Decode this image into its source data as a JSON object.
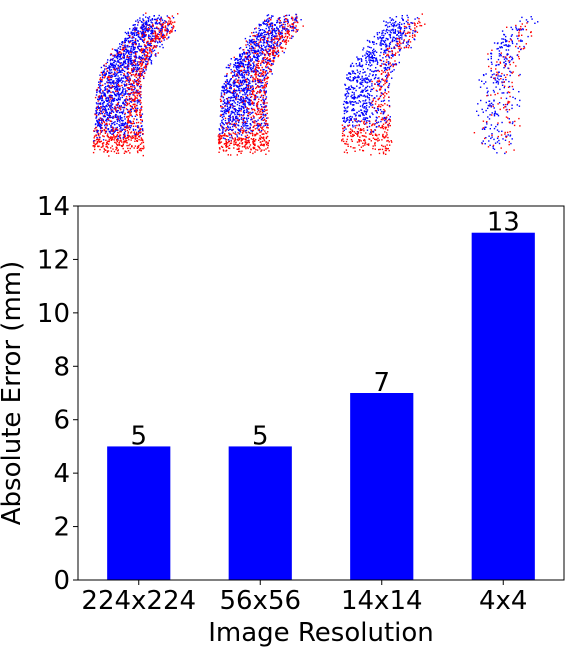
{
  "chart_data": {
    "type": "bar",
    "categories": [
      "224x224",
      "56x56",
      "14x14",
      "4x4"
    ],
    "values": [
      5,
      5,
      7,
      13
    ],
    "data_labels": [
      "5",
      "5",
      "7",
      "13"
    ],
    "xlabel": "Image Resolution",
    "ylabel": "Absolute Error (mm)",
    "ylim": [
      0,
      14
    ],
    "yticks": [
      0,
      2,
      4,
      6,
      8,
      10,
      12,
      14
    ],
    "grid": false,
    "bar_color": "#0000ff"
  },
  "point_cloud_panels": [
    {
      "resolution": "224x224",
      "colors": [
        "#0000ff",
        "#ff0000"
      ]
    },
    {
      "resolution": "56x56",
      "colors": [
        "#0000ff",
        "#ff0000"
      ]
    },
    {
      "resolution": "14x14",
      "colors": [
        "#0000ff",
        "#ff0000"
      ]
    },
    {
      "resolution": "4x4",
      "colors": [
        "#0000ff",
        "#ff0000"
      ]
    }
  ]
}
